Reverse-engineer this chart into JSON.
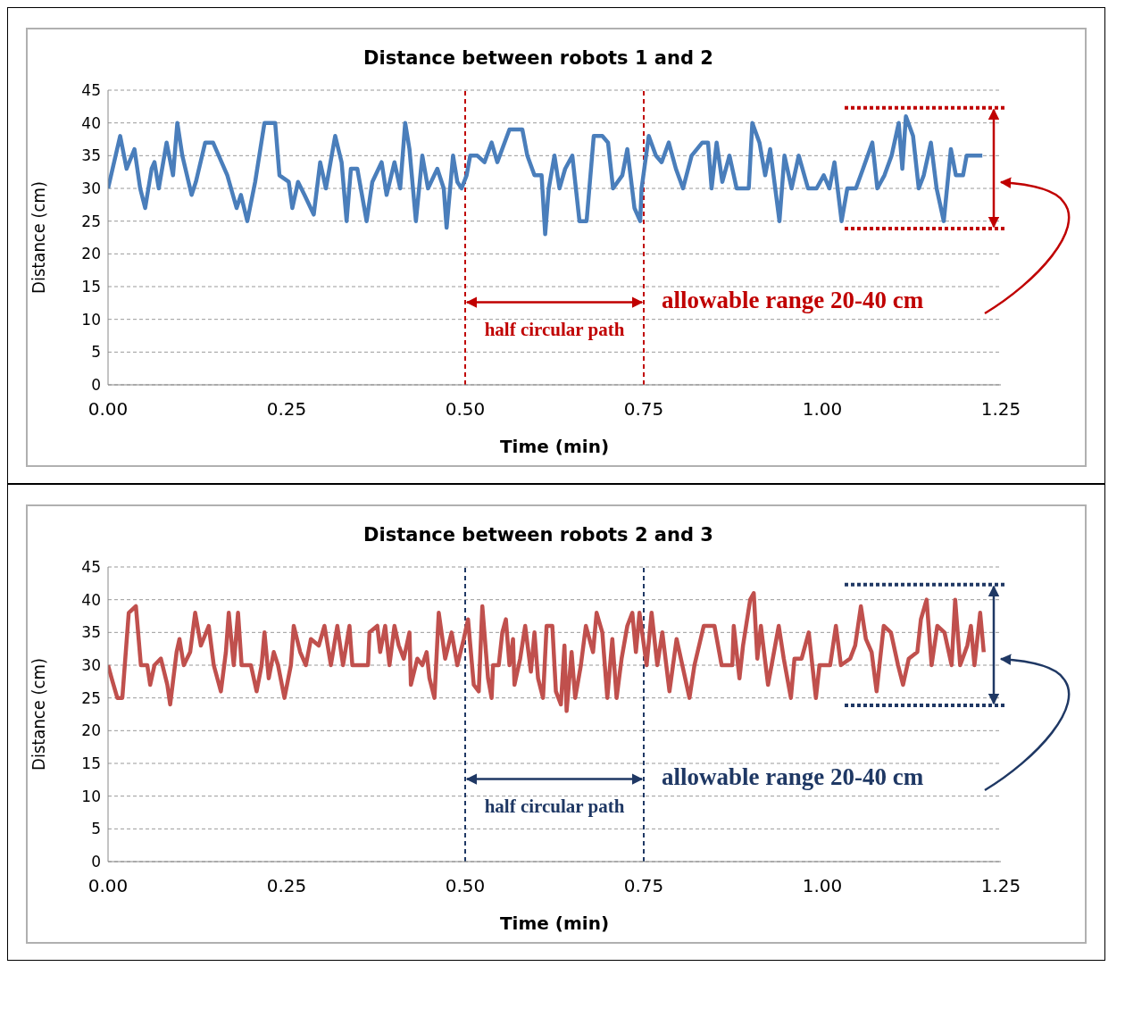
{
  "chart_data": [
    {
      "type": "line",
      "title": "Distance between robots 1 and 2",
      "xlabel": "Time (min)",
      "ylabel": "Distance (cm)",
      "x": [
        0,
        0.017,
        0.026,
        0.037,
        0.045,
        0.052,
        0.061,
        0.065,
        0.071,
        0.082,
        0.091,
        0.097,
        0.104,
        0.117,
        0.123,
        0.136,
        0.147,
        0.167,
        0.18,
        0.186,
        0.195,
        0.206,
        0.219,
        0.234,
        0.24,
        0.253,
        0.258,
        0.266,
        0.275,
        0.288,
        0.297,
        0.305,
        0.318,
        0.327,
        0.334,
        0.34,
        0.349,
        0.362,
        0.37,
        0.383,
        0.39,
        0.401,
        0.409,
        0.416,
        0.422,
        0.431,
        0.44,
        0.448,
        0.461,
        0.47,
        0.474,
        0.483,
        0.489,
        0.495,
        0.502,
        0.507,
        0.517,
        0.527,
        0.537,
        0.545,
        0.562,
        0.58,
        0.587,
        0.597,
        0.607,
        0.612,
        0.617,
        0.625,
        0.632,
        0.64,
        0.65,
        0.66,
        0.67,
        0.68,
        0.692,
        0.7,
        0.707,
        0.72,
        0.727,
        0.737,
        0.745,
        0.747,
        0.757,
        0.767,
        0.775,
        0.785,
        0.795,
        0.805,
        0.817,
        0.832,
        0.84,
        0.845,
        0.852,
        0.86,
        0.87,
        0.88,
        0.897,
        0.902,
        0.912,
        0.92,
        0.927,
        0.94,
        0.947,
        0.957,
        0.967,
        0.98,
        0.992,
        1.002,
        1.01,
        1.017,
        1.027,
        1.035,
        1.047,
        1.057,
        1.07,
        1.077,
        1.087,
        1.097,
        1.107,
        1.112,
        1.117,
        1.127,
        1.135,
        1.142,
        1.152,
        1.16,
        1.17,
        1.18,
        1.187,
        1.197,
        1.202,
        1.224
      ],
      "series": [
        {
          "color": "#4a7ebb",
          "values": [
            30,
            38,
            33,
            36,
            30,
            27,
            33,
            34,
            30,
            37,
            32,
            40,
            35,
            29,
            31,
            37,
            37,
            32,
            27,
            29,
            25,
            31,
            40,
            40,
            32,
            31,
            27,
            31,
            29,
            26,
            34,
            30,
            38,
            34,
            25,
            33,
            33,
            25,
            31,
            34,
            29,
            34,
            30,
            40,
            36,
            25,
            35,
            30,
            33,
            30,
            24,
            35,
            31,
            30,
            32,
            35,
            35,
            34,
            37,
            34,
            39,
            39,
            35,
            32,
            32,
            23,
            30,
            35,
            30,
            33,
            35,
            25,
            25,
            38,
            38,
            37,
            30,
            32,
            36,
            27,
            25,
            30,
            38,
            35,
            34,
            37,
            33,
            30,
            35,
            37,
            37,
            30,
            37,
            31,
            35,
            30,
            30,
            40,
            37,
            32,
            36,
            25,
            35,
            30,
            35,
            30,
            30,
            32,
            30,
            34,
            25,
            30,
            30,
            33,
            37,
            30,
            32,
            35,
            40,
            33,
            41,
            38,
            30,
            32,
            37,
            30,
            25,
            36,
            32,
            32,
            35,
            35
          ]
        }
      ],
      "xlim": [
        0,
        1.25
      ],
      "xticks": [
        {
          "value": 0,
          "label": "0.00"
        },
        {
          "value": 0.25,
          "label": "0.25"
        },
        {
          "value": 0.5,
          "label": "0.50"
        },
        {
          "value": 0.75,
          "label": "0.75"
        },
        {
          "value": 1,
          "label": "1.00"
        },
        {
          "value": 1.25,
          "label": "1.25"
        }
      ],
      "ylim": [
        0,
        45
      ],
      "yticks": [
        0,
        5,
        10,
        15,
        20,
        25,
        30,
        35,
        40,
        45
      ],
      "grid": "y",
      "legend": false,
      "marker": "none",
      "line_style": "solid",
      "ref_lines": [
        {
          "axis": "x",
          "value": 0.5,
          "color": "#c00000",
          "line_style": "dashed"
        },
        {
          "axis": "x",
          "value": 0.75,
          "color": "#c00000",
          "line_style": "dashed"
        }
      ],
      "annotations": [
        "half circular path",
        "allowable range 20-40 cm"
      ]
    },
    {
      "type": "line",
      "title": "Distance between robots 2 and 3",
      "xlabel": "Time (min)",
      "ylabel": "Distance (cm)",
      "x": [
        0,
        0.005,
        0.013,
        0.02,
        0.029,
        0.039,
        0.046,
        0.055,
        0.059,
        0.065,
        0.074,
        0.083,
        0.087,
        0.096,
        0.1,
        0.106,
        0.115,
        0.122,
        0.13,
        0.141,
        0.148,
        0.158,
        0.165,
        0.169,
        0.176,
        0.182,
        0.187,
        0.2,
        0.208,
        0.215,
        0.219,
        0.225,
        0.232,
        0.238,
        0.247,
        0.256,
        0.26,
        0.269,
        0.277,
        0.284,
        0.295,
        0.303,
        0.312,
        0.321,
        0.329,
        0.338,
        0.342,
        0.364,
        0.366,
        0.377,
        0.381,
        0.388,
        0.394,
        0.401,
        0.407,
        0.414,
        0.422,
        0.424,
        0.433,
        0.44,
        0.446,
        0.45,
        0.457,
        0.463,
        0.472,
        0.481,
        0.489,
        0.498,
        0.504,
        0.512,
        0.519,
        0.524,
        0.532,
        0.537,
        0.539,
        0.547,
        0.552,
        0.557,
        0.562,
        0.567,
        0.569,
        0.577,
        0.584,
        0.592,
        0.597,
        0.602,
        0.609,
        0.614,
        0.622,
        0.627,
        0.634,
        0.639,
        0.642,
        0.649,
        0.654,
        0.662,
        0.669,
        0.679,
        0.684,
        0.692,
        0.699,
        0.706,
        0.712,
        0.719,
        0.727,
        0.734,
        0.739,
        0.744,
        0.754,
        0.761,
        0.769,
        0.776,
        0.786,
        0.796,
        0.804,
        0.814,
        0.821,
        0.834,
        0.849,
        0.859,
        0.874,
        0.876,
        0.884,
        0.889,
        0.899,
        0.904,
        0.909,
        0.914,
        0.924,
        0.934,
        0.939,
        0.946,
        0.956,
        0.961,
        0.971,
        0.981,
        0.991,
        0.996,
        1.011,
        1.019,
        1.026,
        1.039,
        1.046,
        1.054,
        1.061,
        1.069,
        1.076,
        1.086,
        1.096,
        1.106,
        1.113,
        1.121,
        1.133,
        1.138,
        1.146,
        1.153,
        1.161,
        1.171,
        1.181,
        1.186,
        1.193,
        1.203,
        1.208,
        1.213,
        1.221,
        1.226
      ],
      "series": [
        {
          "color": "#c0504d",
          "values": [
            30,
            28,
            25,
            25,
            38,
            39,
            30,
            30,
            27,
            30,
            31,
            27,
            24,
            32,
            34,
            30,
            32,
            38,
            33,
            36,
            30,
            26,
            32,
            38,
            30,
            38,
            30,
            30,
            26,
            30,
            35,
            28,
            32,
            30,
            25,
            30,
            36,
            32,
            30,
            34,
            33,
            36,
            30,
            36,
            30,
            36,
            30,
            30,
            35,
            36,
            32,
            36,
            30,
            36,
            33,
            31,
            35,
            27,
            31,
            30,
            32,
            28,
            25,
            38,
            31,
            35,
            30,
            34,
            37,
            27,
            26,
            39,
            28,
            25,
            30,
            30,
            35,
            37,
            30,
            34,
            27,
            31,
            36,
            29,
            35,
            28,
            25,
            36,
            36,
            26,
            24,
            33,
            23,
            32,
            25,
            30,
            36,
            32,
            38,
            35,
            25,
            34,
            25,
            31,
            36,
            38,
            32,
            38,
            30,
            38,
            30,
            35,
            26,
            34,
            30,
            25,
            30,
            36,
            36,
            30,
            30,
            36,
            28,
            33,
            40,
            41,
            31,
            36,
            27,
            33,
            36,
            31,
            25,
            31,
            31,
            35,
            25,
            30,
            30,
            36,
            30,
            31,
            33,
            39,
            34,
            32,
            26,
            36,
            35,
            30,
            27,
            31,
            32,
            37,
            40,
            30,
            36,
            35,
            30,
            40,
            30,
            33,
            36,
            30,
            38,
            32
          ]
        }
      ],
      "xlim": [
        0,
        1.25
      ],
      "xticks": [
        {
          "value": 0,
          "label": "0.00"
        },
        {
          "value": 0.25,
          "label": "0.25"
        },
        {
          "value": 0.5,
          "label": "0.50"
        },
        {
          "value": 0.75,
          "label": "0.75"
        },
        {
          "value": 1,
          "label": "1.00"
        },
        {
          "value": 1.25,
          "label": "1.25"
        }
      ],
      "ylim": [
        0,
        45
      ],
      "yticks": [
        0,
        5,
        10,
        15,
        20,
        25,
        30,
        35,
        40,
        45
      ],
      "grid": "y",
      "legend": false,
      "marker": "none",
      "line_style": "solid",
      "ref_lines": [
        {
          "axis": "x",
          "value": 0.5,
          "color": "#1f3864",
          "line_style": "dashed"
        },
        {
          "axis": "x",
          "value": 0.75,
          "color": "#1f3864",
          "line_style": "dashed"
        }
      ],
      "annotations": [
        "half circular path",
        "allowable range 20-40 cm"
      ]
    }
  ]
}
